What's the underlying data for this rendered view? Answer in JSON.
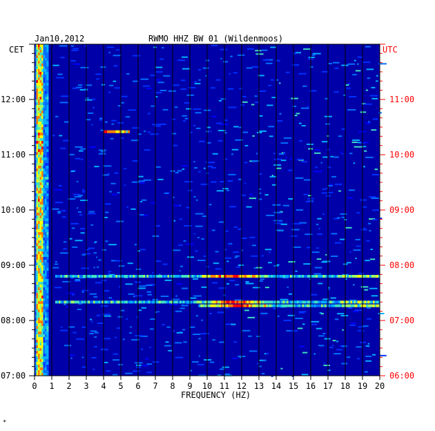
{
  "chart_data": {
    "type": "heatmap",
    "date": "Jan10,2012",
    "title": "RWMO HHZ BW 01 (Wildenmoos)",
    "xlabel": "FREQUENCY (HZ)",
    "xlim": [
      0,
      20
    ],
    "x_ticks": [
      "0",
      "1",
      "2",
      "3",
      "4",
      "5",
      "6",
      "7",
      "8",
      "9",
      "10",
      "11",
      "12",
      "13",
      "14",
      "15",
      "16",
      "17",
      "18",
      "19",
      "20"
    ],
    "left_axis_label": "CET",
    "right_axis_label": "UTC",
    "left_ticks": [
      "12:00",
      "11:00",
      "10:00",
      "09:00",
      "08:00",
      "07:00"
    ],
    "right_ticks": [
      "11:00",
      "10:00",
      "09:00",
      "08:00",
      "07:00",
      "06:00"
    ],
    "time_range_cet": [
      "07:00",
      "13:00"
    ],
    "colors": {
      "background": "#0000a8",
      "utc": "#ff0000",
      "grid": "#000000"
    },
    "bands": [
      {
        "time_cet": "08:48",
        "from_hz": 1.2,
        "to_hz": 20,
        "peak_hz": 11.5
      },
      {
        "time_cet": "08:20",
        "from_hz": 1.2,
        "to_hz": 20,
        "peak_hz": 11.5
      },
      {
        "time_cet": "08:16",
        "from_hz": 9.5,
        "to_hz": 20,
        "peak_hz": 11.8
      },
      {
        "time_cet": "11:25",
        "from_hz": 4.0,
        "to_hz": 5.5,
        "peak_hz": 4.1
      }
    ]
  },
  "footer_mark": "*"
}
